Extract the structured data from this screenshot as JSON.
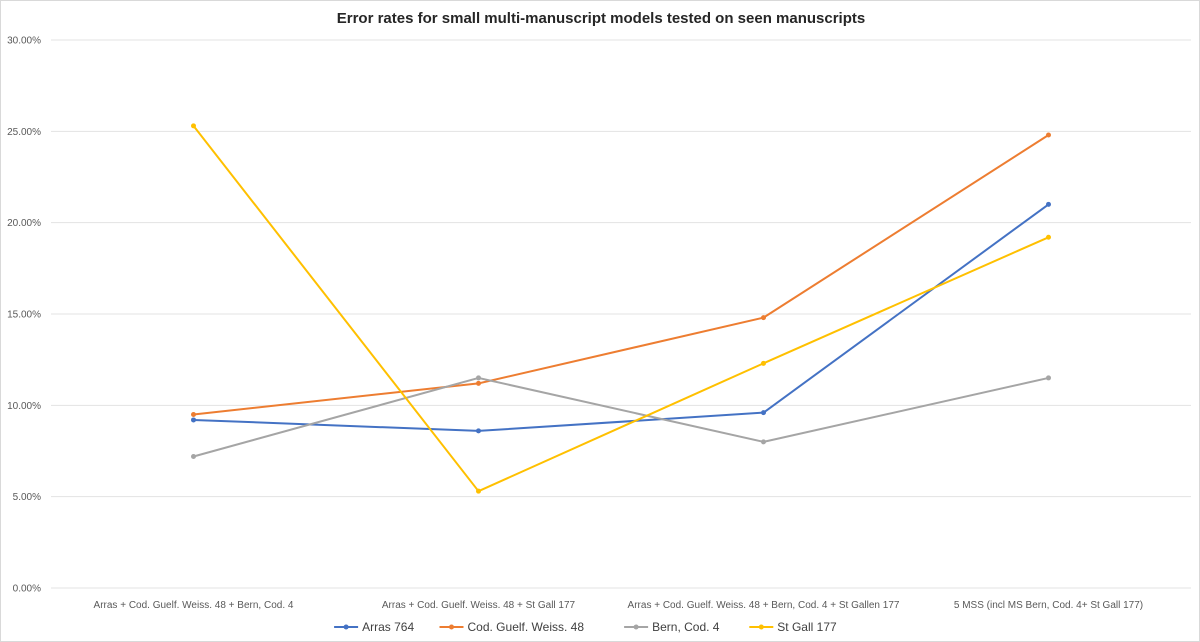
{
  "chart_data": {
    "type": "line",
    "title": "Error rates for small multi-manuscript models tested on seen manuscripts",
    "xlabel": "",
    "ylabel": "",
    "ylim": [
      0,
      0.3
    ],
    "y_ticks": [
      "0.00%",
      "5.00%",
      "10.00%",
      "15.00%",
      "20.00%",
      "25.00%",
      "30.00%"
    ],
    "categories": [
      "Arras + Cod. Guelf. Weiss. 48 + Bern, Cod. 4",
      "Arras + Cod. Guelf. Weiss. 48 + St Gall 177",
      "Arras + Cod. Guelf. Weiss. 48 + Bern, Cod. 4 + St Gallen 177",
      "5 MSS (incl MS Bern, Cod. 4+ St Gall 177)"
    ],
    "series": [
      {
        "name": "Arras 764",
        "color": "#4472c4",
        "values": [
          0.092,
          0.086,
          0.096,
          0.21
        ]
      },
      {
        "name": "Cod. Guelf. Weiss. 48",
        "color": "#ed7d31",
        "values": [
          0.095,
          0.112,
          0.148,
          0.248
        ]
      },
      {
        "name": "Bern, Cod. 4",
        "color": "#a5a5a5",
        "values": [
          0.072,
          0.115,
          0.08,
          0.115
        ]
      },
      {
        "name": "St Gall 177",
        "color": "#ffc000",
        "values": [
          null,
          0.053,
          0.123,
          0.192
        ],
        "first_value": 0.253
      }
    ],
    "grid": true,
    "legend_position": "bottom"
  }
}
